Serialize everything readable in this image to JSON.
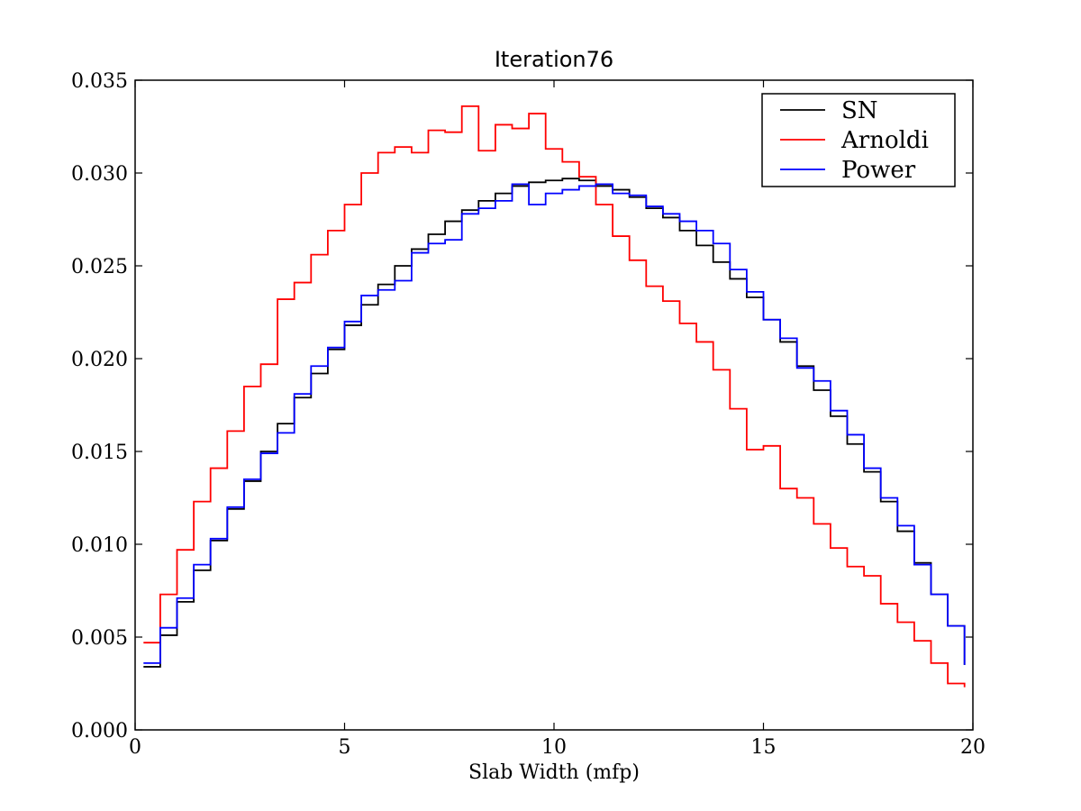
{
  "chart_data": {
    "type": "line",
    "title": "Iteration76",
    "xlabel": "Slab Width (mfp)",
    "ylabel": "",
    "xlim": [
      0,
      20
    ],
    "ylim": [
      0.0,
      0.035
    ],
    "xticks": [
      0,
      5,
      10,
      15,
      20
    ],
    "xtick_labels": [
      "0",
      "5",
      "10",
      "15",
      "20"
    ],
    "yticks": [
      0.0,
      0.005,
      0.01,
      0.015,
      0.02,
      0.025,
      0.03,
      0.035
    ],
    "ytick_labels": [
      "0.000",
      "0.005",
      "0.010",
      "0.015",
      "0.020",
      "0.025",
      "0.030",
      "0.035"
    ],
    "grid": false,
    "legend_position": "top-right",
    "bin_edges": [
      0.2,
      0.6,
      1.0,
      1.4,
      1.8,
      2.2,
      2.6,
      3.0,
      3.4,
      3.8,
      4.2,
      4.6,
      5.0,
      5.4,
      5.8,
      6.2,
      6.6,
      7.0,
      7.4,
      7.8,
      8.2,
      8.6,
      9.0,
      9.4,
      9.8,
      10.2,
      10.6,
      11.0,
      11.4,
      11.8,
      12.2,
      12.6,
      13.0,
      13.4,
      13.8,
      14.2,
      14.6,
      15.0,
      15.4,
      15.8,
      16.2,
      16.6,
      17.0,
      17.4,
      17.8,
      18.2,
      18.6,
      19.0,
      19.4,
      19.8
    ],
    "series": [
      {
        "name": "SN",
        "color": "#000000",
        "values": [
          0.0034,
          0.0051,
          0.0069,
          0.0086,
          0.0102,
          0.0119,
          0.0134,
          0.015,
          0.0165,
          0.0179,
          0.0192,
          0.0205,
          0.0218,
          0.0229,
          0.024,
          0.025,
          0.0259,
          0.0267,
          0.0274,
          0.028,
          0.0285,
          0.0289,
          0.0293,
          0.0295,
          0.0296,
          0.0297,
          0.0296,
          0.0293,
          0.0291,
          0.0287,
          0.0281,
          0.0276,
          0.0269,
          0.0261,
          0.0252,
          0.0243,
          0.0233,
          0.0221,
          0.0209,
          0.0196,
          0.0183,
          0.0169,
          0.0154,
          0.0139,
          0.0123,
          0.0107,
          0.009,
          0.0073,
          0.0056
        ],
        "final_value": 0.0035
      },
      {
        "name": "Arnoldi",
        "color": "#ff0000",
        "values": [
          0.0047,
          0.0073,
          0.0097,
          0.0123,
          0.0141,
          0.0161,
          0.0185,
          0.0197,
          0.0232,
          0.0241,
          0.0256,
          0.0269,
          0.0283,
          0.03,
          0.0311,
          0.0314,
          0.0311,
          0.0323,
          0.0322,
          0.0336,
          0.0312,
          0.0326,
          0.0324,
          0.0332,
          0.0313,
          0.0306,
          0.0298,
          0.0283,
          0.0266,
          0.0253,
          0.0239,
          0.0231,
          0.0219,
          0.0209,
          0.0194,
          0.0173,
          0.0151,
          0.0153,
          0.013,
          0.0125,
          0.0111,
          0.0098,
          0.0088,
          0.0083,
          0.0068,
          0.0058,
          0.0048,
          0.0036,
          0.0025
        ],
        "final_value": 0.0023
      },
      {
        "name": "Power",
        "color": "#0000ff",
        "values": [
          0.0036,
          0.0055,
          0.0071,
          0.0089,
          0.0103,
          0.012,
          0.0135,
          0.0149,
          0.016,
          0.0181,
          0.0196,
          0.0206,
          0.022,
          0.0234,
          0.0237,
          0.0242,
          0.0257,
          0.0262,
          0.0264,
          0.0278,
          0.0281,
          0.0285,
          0.0294,
          0.0283,
          0.0289,
          0.0291,
          0.0293,
          0.0294,
          0.0289,
          0.0288,
          0.0282,
          0.0278,
          0.0274,
          0.0269,
          0.0262,
          0.0248,
          0.0236,
          0.0221,
          0.0211,
          0.0195,
          0.0188,
          0.0172,
          0.0159,
          0.0141,
          0.0125,
          0.011,
          0.0089,
          0.0073,
          0.0056
        ],
        "final_value": 0.0035
      }
    ]
  }
}
